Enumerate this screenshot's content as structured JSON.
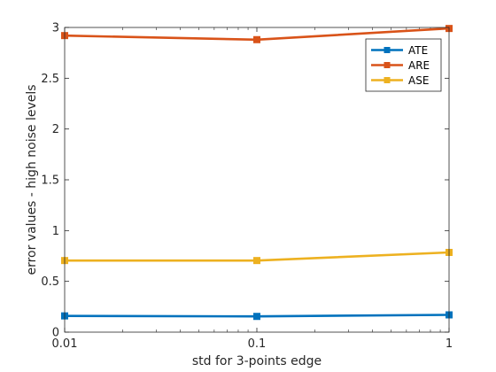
{
  "chart_data": {
    "type": "line",
    "x": [
      0.01,
      0.1,
      1
    ],
    "xscale": "log",
    "xlim": [
      0.01,
      1
    ],
    "ylim": [
      0,
      3
    ],
    "xticks": [
      {
        "value": 0.01,
        "label": "0.01"
      },
      {
        "value": 0.1,
        "label": "0.1"
      },
      {
        "value": 1,
        "label": "1"
      }
    ],
    "yticks": [
      {
        "value": 0,
        "label": "0"
      },
      {
        "value": 0.5,
        "label": "0.5"
      },
      {
        "value": 1,
        "label": "1"
      },
      {
        "value": 1.5,
        "label": "1.5"
      },
      {
        "value": 2,
        "label": "2"
      },
      {
        "value": 2.5,
        "label": "2.5"
      },
      {
        "value": 3,
        "label": "3"
      }
    ],
    "xlabel": "std for 3-points edge",
    "ylabel": "error values - high noise levels",
    "grid": false,
    "legend_position": "top-right",
    "series": [
      {
        "name": "ATE",
        "color": "#0072BD",
        "values": [
          0.16,
          0.155,
          0.17
        ]
      },
      {
        "name": "ARE",
        "color": "#D95319",
        "values": [
          2.92,
          2.88,
          2.99
        ]
      },
      {
        "name": "ASE",
        "color": "#EDB120",
        "values": [
          0.705,
          0.705,
          0.785
        ]
      }
    ]
  }
}
